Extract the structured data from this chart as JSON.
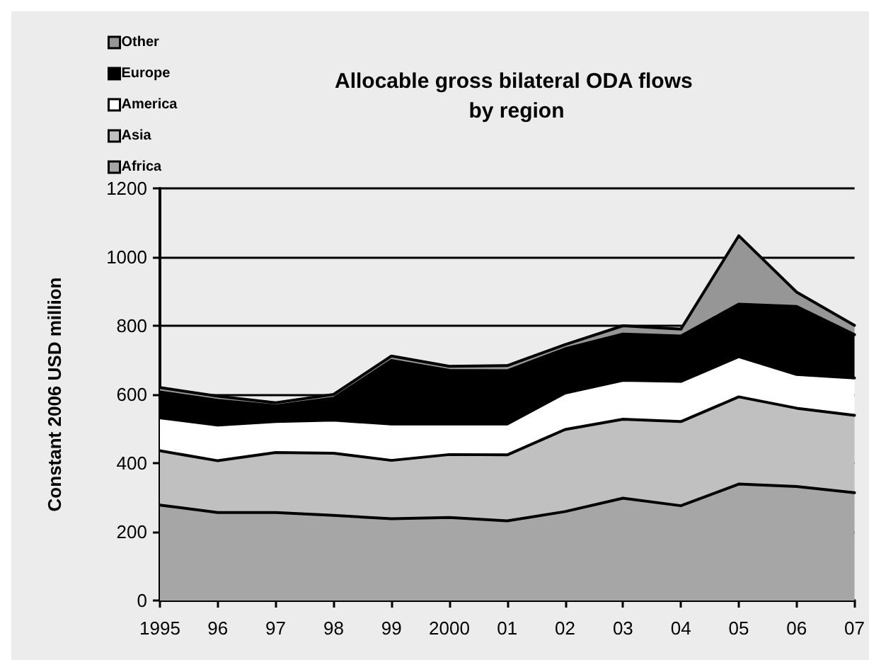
{
  "chart_data": {
    "type": "area",
    "title": "Allocable gross bilateral ODA flows by region",
    "ylabel": "Constant 2006 USD million",
    "categories": [
      "1995",
      "96",
      "97",
      "98",
      "99",
      "2000",
      "01",
      "02",
      "03",
      "04",
      "05",
      "06",
      "07"
    ],
    "series": [
      {
        "name": "Africa",
        "color": "#a6a6a6",
        "values": [
          278,
          256,
          256,
          248,
          238,
          242,
          232,
          259,
          298,
          276,
          339,
          332,
          314
        ]
      },
      {
        "name": "Asia",
        "color": "#c0c0c0",
        "values": [
          158,
          151,
          175,
          181,
          170,
          183,
          192,
          239,
          230,
          245,
          254,
          228,
          225
        ]
      },
      {
        "name": "America",
        "color": "#ffffff",
        "values": [
          96,
          104,
          90,
          96,
          106,
          89,
          90,
          106,
          113,
          117,
          117,
          98,
          109
        ]
      },
      {
        "name": "Europe",
        "color": "#000000",
        "values": [
          75,
          72,
          46,
          64,
          185,
          156,
          155,
          129,
          135,
          132,
          153,
          198,
          126
        ]
      },
      {
        "name": "Other",
        "color": "#969696",
        "values": [
          13,
          12,
          9,
          11,
          13,
          12,
          15,
          12,
          24,
          20,
          199,
          42,
          27
        ]
      }
    ],
    "stacked": true,
    "ylim": [
      0,
      1200
    ],
    "yticks": [
      0,
      200,
      400,
      600,
      800,
      1000,
      1200
    ],
    "grid": "y",
    "legend": "top left",
    "marker": "none"
  }
}
